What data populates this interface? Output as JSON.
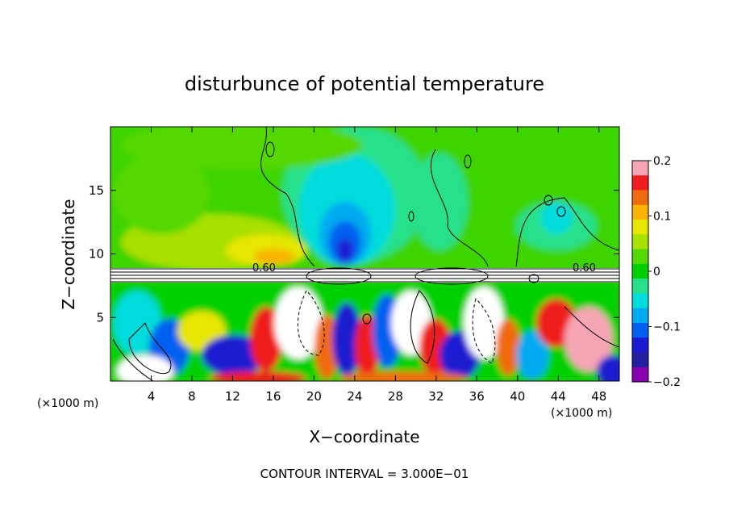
{
  "chart_data": {
    "type": "heatmap",
    "title": "disturbunce of potential temperature",
    "xlabel": "X−coordinate",
    "ylabel": "Z−coordinate",
    "x_unit": "(×1000 m)",
    "y_unit": "(×1000 m)",
    "xlim": [
      0,
      50
    ],
    "ylim": [
      0,
      20
    ],
    "x_ticks": [
      4,
      8,
      12,
      16,
      20,
      24,
      28,
      32,
      36,
      40,
      44,
      48
    ],
    "y_ticks": [
      5,
      10,
      15
    ],
    "colorbar": {
      "min": -0.2,
      "max": 0.2,
      "tick_values": [
        0.2,
        0.1,
        0,
        -0.1,
        -0.2
      ],
      "tick_labels": [
        "0.2",
        "0.1",
        "0",
        "−0.1",
        "−0.2"
      ],
      "colors": [
        "#f6a5b4",
        "#ef1f1f",
        "#f06a10",
        "#f8b400",
        "#e6e600",
        "#a8e000",
        "#55d800",
        "#00d000",
        "#26e08a",
        "#00dcdc",
        "#00aaf0",
        "#0060f0",
        "#1a1ad0",
        "#2020a0",
        "#8a00b0"
      ]
    },
    "contour_label": "0.60",
    "contour_interval_text": "CONTOUR INTERVAL = 3.000E−01"
  }
}
